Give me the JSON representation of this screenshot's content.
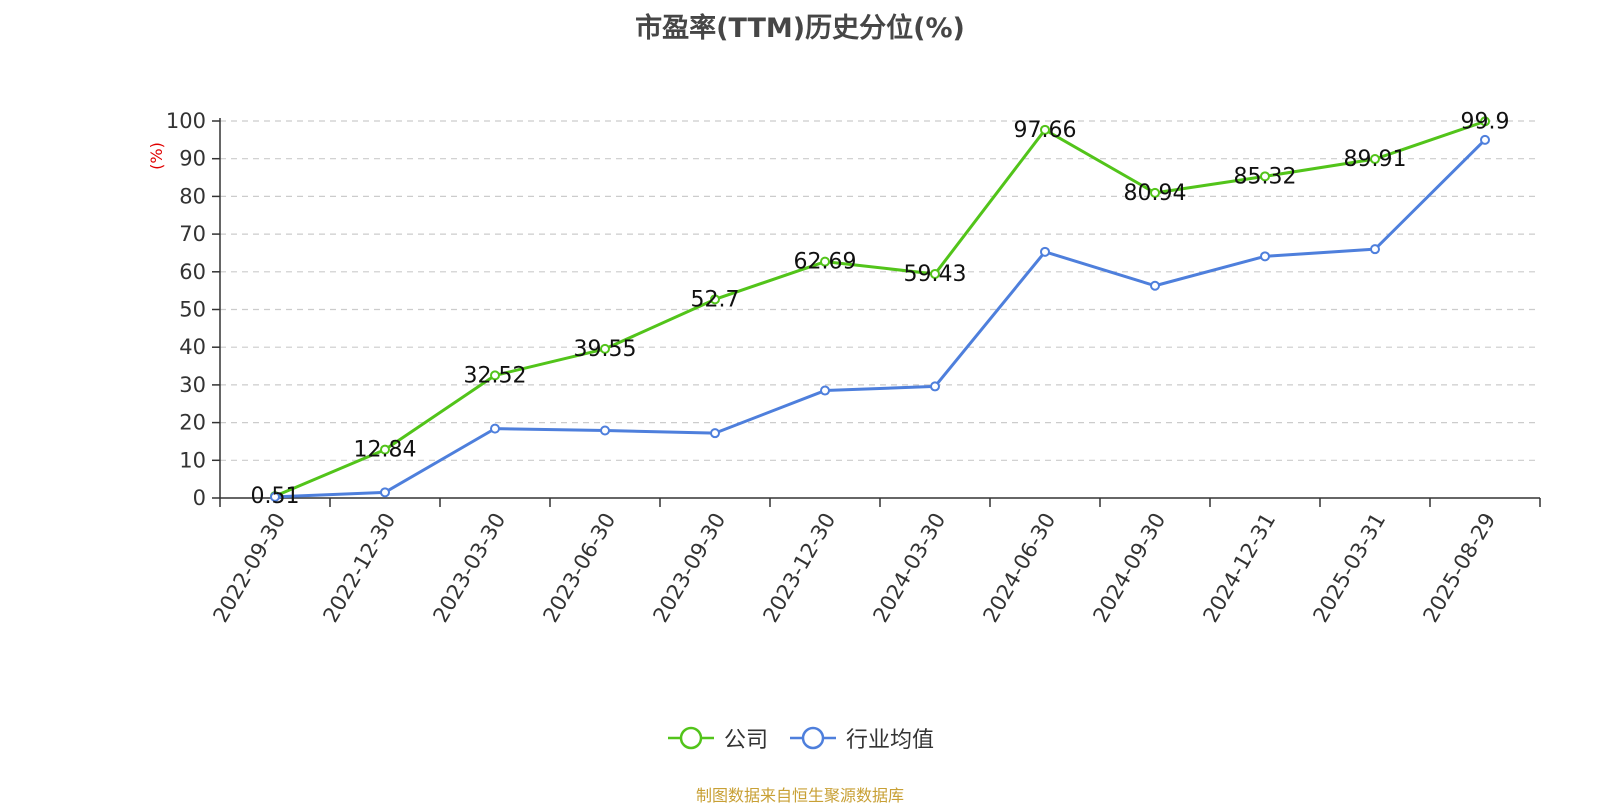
{
  "chart_data": {
    "type": "line",
    "title": "市盈率(TTM)历史分位(%)",
    "ylabel": "(%)",
    "xlabel": "",
    "ylim": [
      0,
      100
    ],
    "yticks": [
      0,
      10,
      20,
      30,
      40,
      50,
      60,
      70,
      80,
      90,
      100
    ],
    "grid": true,
    "legend_position": "bottom",
    "categories": [
      "2022-09-30",
      "2022-12-30",
      "2023-03-30",
      "2023-06-30",
      "2023-09-30",
      "2023-12-30",
      "2024-03-30",
      "2024-06-30",
      "2024-09-30",
      "2024-12-31",
      "2025-03-31",
      "2025-08-29"
    ],
    "series": [
      {
        "name": "公司",
        "color": "#52c41a",
        "values": [
          0.51,
          12.84,
          32.52,
          39.55,
          52.7,
          62.69,
          59.43,
          97.66,
          80.94,
          85.32,
          89.91,
          99.9
        ],
        "data_labels": [
          "0.51",
          "12.84",
          "32.52",
          "39.55",
          "52.7",
          "62.69",
          "59.43",
          "97.66",
          "80.94",
          "85.32",
          "89.91",
          "99.9"
        ]
      },
      {
        "name": "行业均值",
        "color": "#4e7fdc",
        "values": [
          0.3,
          1.5,
          18.4,
          17.9,
          17.2,
          28.5,
          29.6,
          65.3,
          56.3,
          64.1,
          66.0,
          95.0
        ]
      }
    ]
  },
  "footer": {
    "source": "制图数据来自恒生聚源数据库"
  }
}
